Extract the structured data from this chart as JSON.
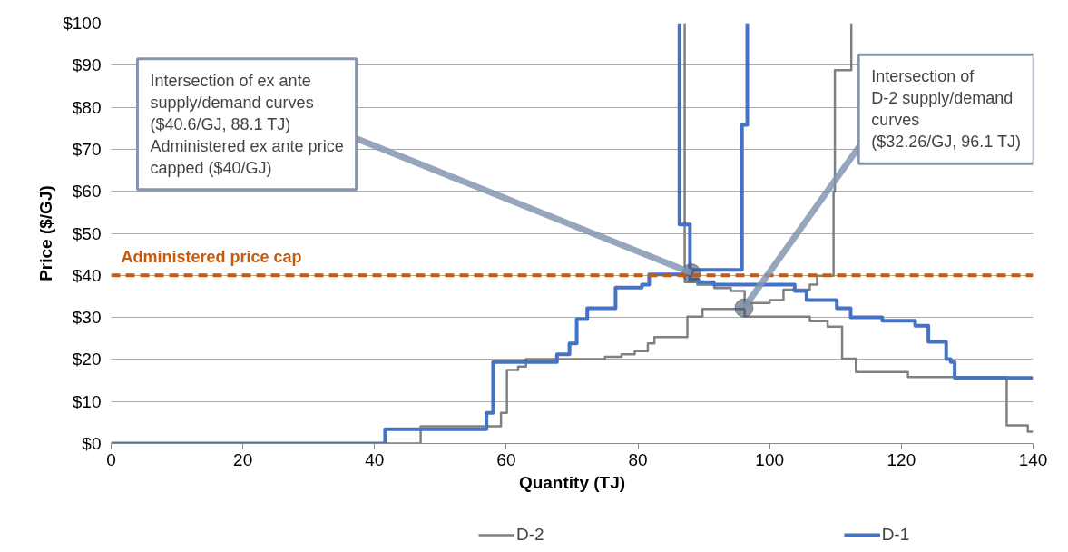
{
  "chart_data": {
    "type": "line",
    "xlabel": "Quantity (TJ)",
    "ylabel": "Price ($/GJ)",
    "xlim": [
      0,
      140
    ],
    "xticks": [
      0,
      20,
      40,
      60,
      80,
      100,
      120,
      140
    ],
    "ylim": [
      0,
      100
    ],
    "yticks": [
      {
        "value": 0,
        "label": "$0"
      },
      {
        "value": 10,
        "label": "$10"
      },
      {
        "value": 20,
        "label": "$20"
      },
      {
        "value": 30,
        "label": "$30"
      },
      {
        "value": 40,
        "label": "$40"
      },
      {
        "value": 50,
        "label": "$50"
      },
      {
        "value": 60,
        "label": "$60"
      },
      {
        "value": 70,
        "label": "$70"
      },
      {
        "value": 80,
        "label": "$80"
      },
      {
        "value": 90,
        "label": "$90"
      },
      {
        "value": 100,
        "label": "$100"
      }
    ],
    "grid": "y",
    "legend": "bottom",
    "marker": "none",
    "line_style": "solid",
    "series": [
      {
        "name": "D-2",
        "color": "#808080",
        "x": [
          0,
          47.0,
          47.0,
          59.2,
          59.2,
          60.1,
          60.1,
          61.8,
          61.8,
          63.0,
          63.0,
          75.0,
          75.0,
          77.5,
          77.5,
          79.5,
          79.5,
          81.5,
          81.5,
          82.5,
          82.5,
          87.5,
          87.5,
          89.8,
          89.8,
          96.2,
          96.2,
          100.0,
          100.0,
          102.1,
          102.1,
          106.1,
          106.1,
          107.2,
          107.2,
          109.7,
          109.7,
          109.9,
          109.9,
          112.4,
          112.4
        ],
        "values": [
          0,
          0,
          4.1,
          4.1,
          7.3,
          7.3,
          17.5,
          17.5,
          18.3,
          18.3,
          20.1,
          20.1,
          20.6,
          20.6,
          21.2,
          21.2,
          22.0,
          22.0,
          23.8,
          23.8,
          25.3,
          25.3,
          30.2,
          30.2,
          32.0,
          32.0,
          33.4,
          33.4,
          34.1,
          34.1,
          36.6,
          36.6,
          37.8,
          37.8,
          39.9,
          39.9,
          60.0,
          60.0,
          88.8,
          88.8,
          100
        ]
      },
      {
        "color": "#808080",
        "x": [
          87.1,
          87.1,
          89.0,
          89.0,
          91.6,
          91.6,
          94.1,
          94.1,
          96.2,
          96.2,
          106.1,
          106.1,
          108.8,
          108.8,
          111.0,
          111.0,
          113.1,
          113.1,
          121.0,
          121.0,
          136.0,
          136.0,
          139.2,
          139.2,
          140
        ],
        "values": [
          100,
          38.4,
          38.4,
          37.8,
          37.8,
          37.0,
          37.0,
          36.3,
          36.3,
          30.2,
          30.2,
          29.1,
          29.1,
          27.8,
          27.8,
          20.2,
          20.2,
          17.0,
          17.0,
          15.8,
          15.8,
          4.3,
          4.3,
          2.8,
          2.8
        ]
      },
      {
        "name": "D-1",
        "color": "#4472c4",
        "x": [
          0,
          41.6,
          41.6,
          57.0,
          57.0,
          58.0,
          58.0,
          67.7,
          67.7,
          69.6,
          69.6,
          70.7,
          70.7,
          72.3,
          72.3,
          76.6,
          76.6,
          80.6,
          80.6,
          81.7,
          81.7,
          88.2,
          88.2,
          95.8,
          95.8,
          96.6,
          96.6
        ],
        "values": [
          0,
          0,
          3.4,
          3.4,
          7.3,
          7.3,
          19.4,
          19.4,
          21.2,
          21.2,
          23.8,
          23.8,
          29.6,
          29.6,
          32.2,
          32.2,
          37.1,
          37.1,
          37.8,
          37.8,
          40.2,
          40.2,
          41.3,
          41.3,
          75.8,
          75.8,
          100
        ]
      },
      {
        "color": "#4472c4",
        "x": [
          86.3,
          86.3,
          87.9,
          87.9,
          89.2,
          89.2,
          91.5,
          91.5,
          103.8,
          103.8,
          105.6,
          105.6,
          110.2,
          110.2,
          112.3,
          112.3,
          117.1,
          117.1,
          122.1,
          122.1,
          124.1,
          124.1,
          126.8,
          126.8,
          127.5,
          127.5,
          128.1,
          128.1,
          140
        ],
        "values": [
          100,
          52.1,
          52.1,
          39.0,
          39.0,
          38.4,
          38.4,
          37.8,
          37.8,
          36.3,
          36.3,
          34.1,
          34.1,
          32.2,
          32.2,
          30.0,
          30.0,
          29.2,
          29.2,
          28.0,
          28.0,
          24.2,
          24.2,
          20.1,
          20.1,
          19.4,
          19.4,
          15.6,
          15.6
        ]
      }
    ],
    "ref_lines": [
      {
        "axis": "y",
        "value": 40,
        "label": "Administered price cap",
        "color": "#c55a11",
        "line_style": "dashed"
      }
    ],
    "annotations": [
      {
        "text": "Intersection of ex ante\nsupply/demand curves\n($40.6/GJ, 88.1 TJ)\nAdministered ex ante price\ncapped ($40/GJ)",
        "x": 88.1,
        "y": 40.6
      },
      {
        "text": "Intersection of\nD-2 supply/demand\ncurves\n($32.26/GJ, 96.1 TJ)",
        "x": 96.1,
        "y": 32.26
      }
    ]
  }
}
